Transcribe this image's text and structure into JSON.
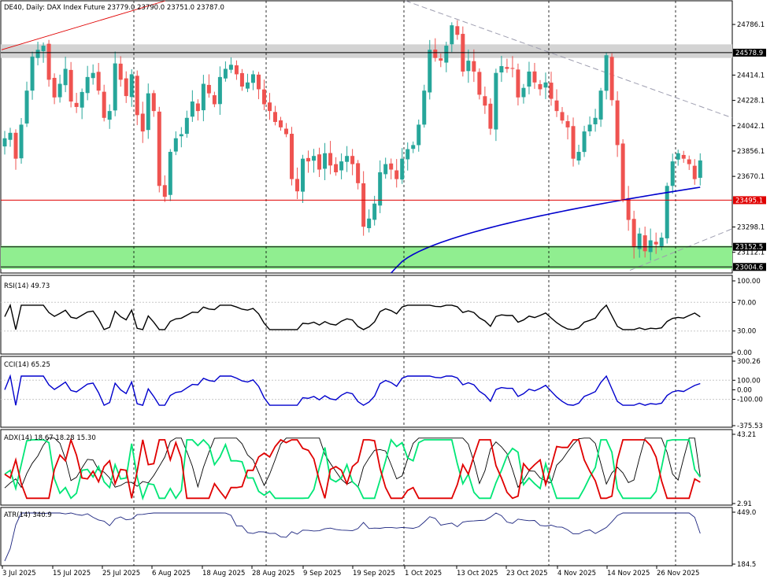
{
  "chart_data": {
    "type": "candlestick",
    "title": "DE40, Daily:  DAX Index Future  23779.0 23790.0 23751.0 23787.0",
    "symbol": "DE40",
    "timeframe": "Daily",
    "instrument": "DAX Index Future",
    "last_ohlc": {
      "open": 23779.0,
      "high": 23790.0,
      "low": 23751.0,
      "close": 23787.0
    },
    "colors": {
      "bull": "#26a69a",
      "bear": "#ef5350",
      "ma": "#0000cd",
      "rsi": "#000000",
      "cci": "#0000cd",
      "adx": "#000000",
      "plus_di": "#00e676",
      "minus_di": "#e00000",
      "atr": "#1a237e",
      "support_zone": "#90ee90",
      "resistance_zone": "#d3d3d3",
      "hline_red": "#e00000"
    },
    "price_axis_ticks": [
      "24786.1",
      "24414.1",
      "24228.1",
      "24042.1",
      "23856.1",
      "23670.1",
      "23298.1",
      "23112.1"
    ],
    "price_ylim": [
      22960,
      24960
    ],
    "x_tick_labels": [
      "3 Jul 2025",
      "15 Jul 2025",
      "25 Jul 2025",
      "6 Aug 2025",
      "18 Aug 2025",
      "28 Aug 2025",
      "9 Sep 2025",
      "19 Sep 2025",
      "1 Oct 2025",
      "13 Oct 2025",
      "23 Oct 2025",
      "4 Nov 2025",
      "14 Nov 2025",
      "26 Nov 2025"
    ],
    "levels": [
      {
        "label": "24578.9",
        "value": 24578.9,
        "style": "black"
      },
      {
        "label": "23495.1",
        "value": 23495.1,
        "style": "red"
      },
      {
        "label": "23152.5",
        "value": 23152.5,
        "style": "black"
      },
      {
        "label": "23004.6",
        "value": 23004.6,
        "style": "black"
      }
    ],
    "zones": [
      {
        "name": "resistance",
        "from": 24540,
        "to": 24640
      },
      {
        "name": "support",
        "from": 22990,
        "to": 23160
      }
    ],
    "close_series": [
      23950,
      23990,
      23800,
      24050,
      24300,
      24550,
      24600,
      24630,
      24380,
      24250,
      24350,
      24460,
      24220,
      24180,
      24290,
      24400,
      24430,
      24300,
      24100,
      24150,
      24500,
      24380,
      24260,
      24420,
      24120,
      24000,
      24280,
      24150,
      23600,
      23520,
      23850,
      23950,
      23980,
      24100,
      24220,
      24150,
      24350,
      24280,
      24200,
      24400,
      24460,
      24490,
      24420,
      24330,
      24360,
      24420,
      24310,
      24200,
      24150,
      24070,
      24030,
      23980,
      23650,
      23560,
      23800,
      23780,
      23820,
      23720,
      23840,
      23750,
      23700,
      23780,
      23820,
      23760,
      23620,
      23300,
      23360,
      23470,
      23700,
      23760,
      23720,
      23650,
      23800,
      23870,
      23900,
      24050,
      24300,
      24600,
      24540,
      24520,
      24630,
      24780,
      24710,
      24440,
      24520,
      24440,
      24270,
      24190,
      24020,
      24430,
      24480,
      24460,
      24460,
      24250,
      24320,
      24440,
      24360,
      24310,
      24360,
      24240,
      24150,
      24080,
      24030,
      23800,
      23850,
      24000,
      24050,
      24100,
      24300,
      24560,
      24230,
      23900,
      23500,
      23350,
      23150,
      23250,
      23120,
      23200,
      23170,
      23220,
      23600,
      23780,
      23840,
      23800,
      23760,
      23650,
      23787
    ],
    "ma_label": "MA",
    "rsi": {
      "label": "RSI(14) 49.73",
      "ticks": [
        "100.00",
        "70.00",
        "30.00",
        "0.00"
      ],
      "ylim": [
        0,
        100
      ]
    },
    "cci": {
      "label": "CCI(14) 65.25",
      "ticks": [
        "300.26",
        "100.00",
        "0.00",
        "-100.00",
        "-375.53"
      ],
      "ylim": [
        -375.53,
        300.26
      ]
    },
    "adx": {
      "label": "ADX(14) 18.67 18.28 15.30",
      "ticks": [
        "43.21",
        "2.91"
      ],
      "ylim": [
        2.91,
        43.21
      ],
      "adx_value": 18.67,
      "plus_di": 18.28,
      "minus_di": 15.3
    },
    "atr": {
      "label": "ATR(14) 340.9",
      "ticks": [
        "449.0",
        "184.5"
      ],
      "ylim": [
        184.5,
        449.0
      ]
    },
    "grid": false,
    "legend": "top-left"
  }
}
